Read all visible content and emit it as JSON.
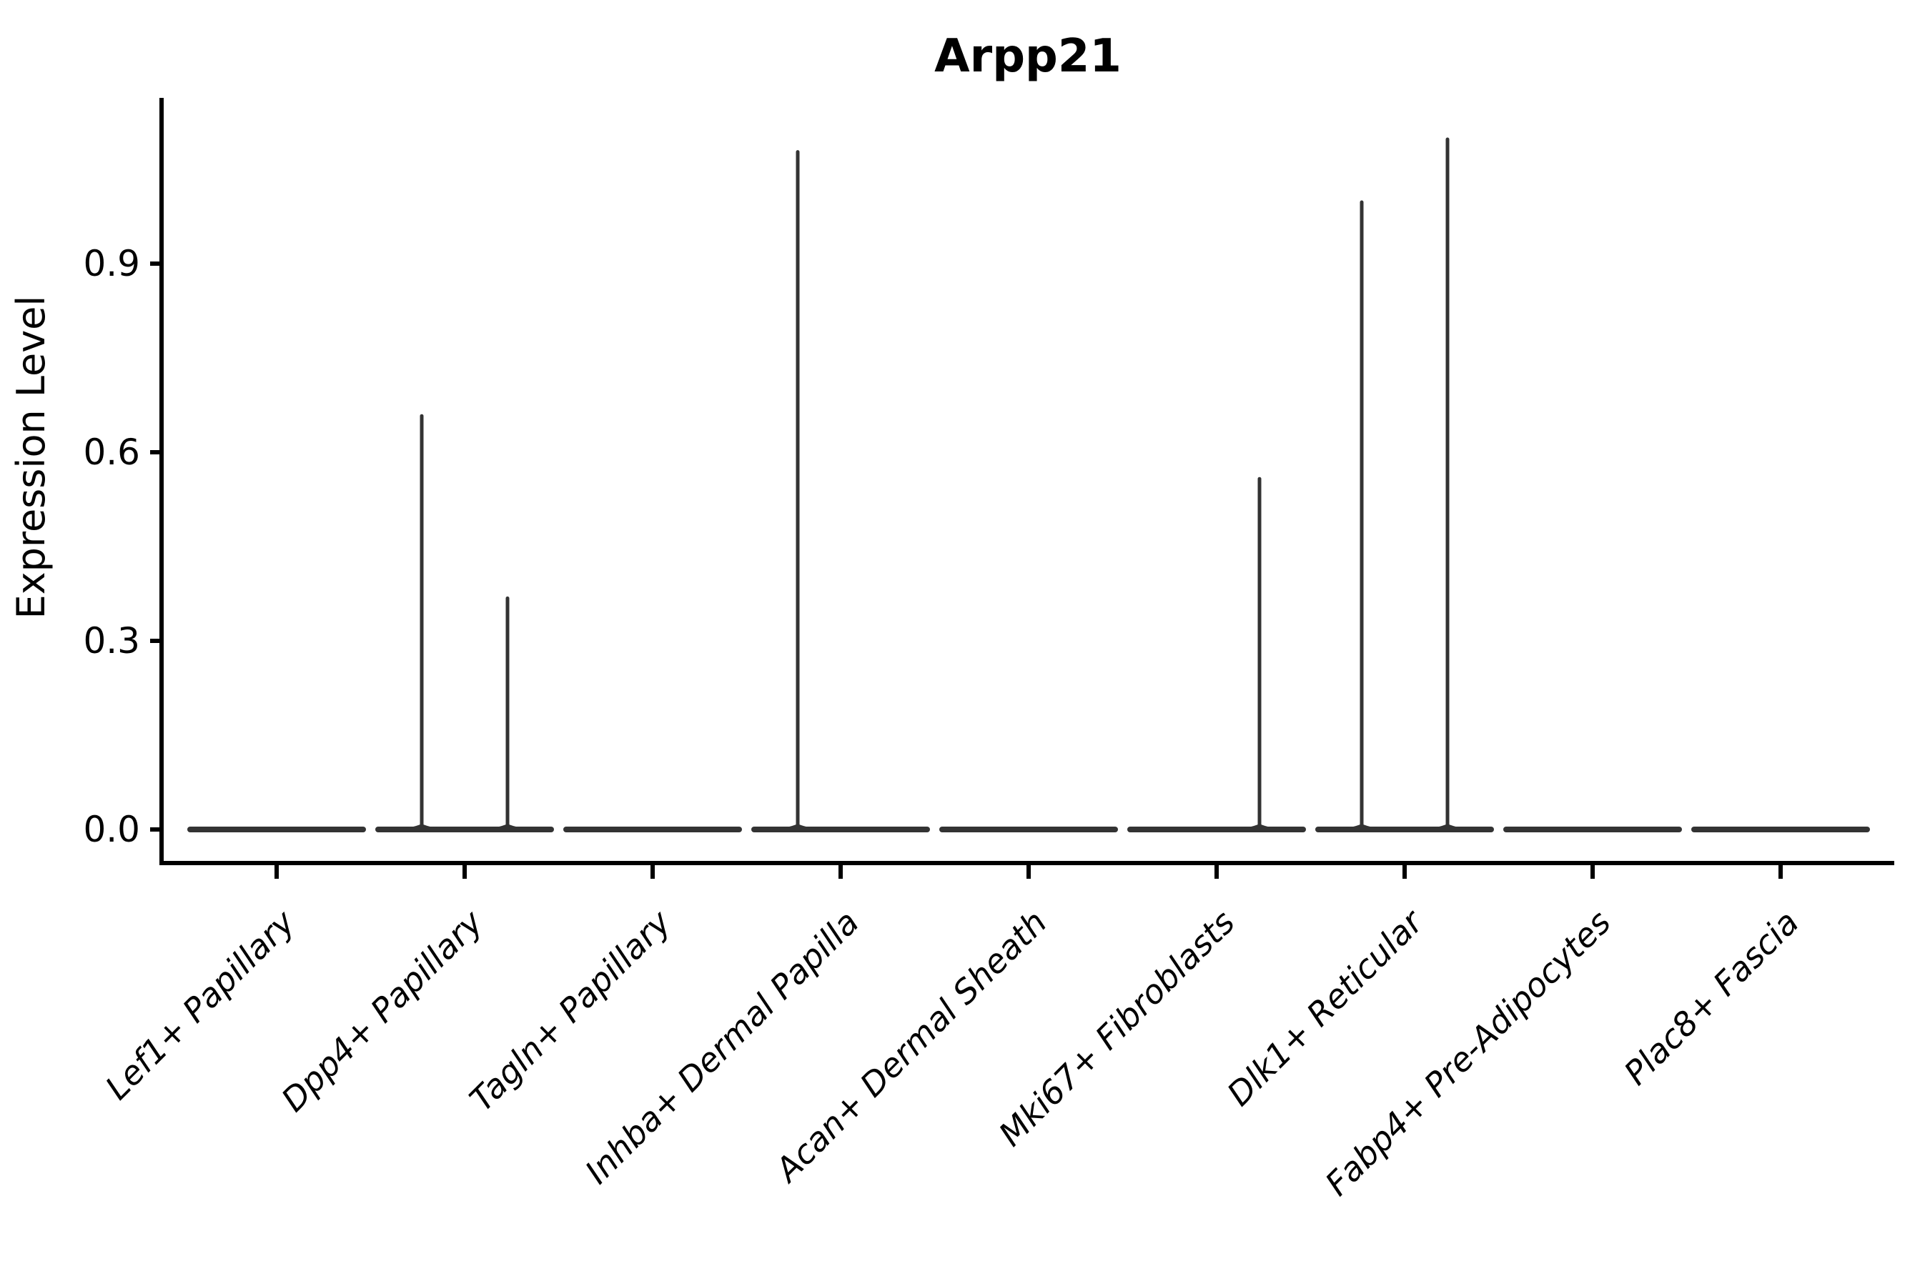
{
  "chart_data": {
    "type": "violin",
    "title": "Arpp21",
    "xlabel": "",
    "ylabel": "Expression Level",
    "yticks": [
      "0.0",
      "0.3",
      "0.6",
      "0.9"
    ],
    "ytick_values": [
      0.0,
      0.3,
      0.6,
      0.9
    ],
    "ylim": [
      -0.05,
      1.16
    ],
    "grid": false,
    "legend": "none",
    "colors": {
      "violin_stroke": "#333333",
      "axis": "#000000",
      "text": "#000000",
      "background": "#ffffff"
    },
    "categories": [
      "Lef1+ Papillary",
      "Dpp4+ Papillary",
      "Tagln+ Papillary",
      "Inhba+ Dermal Papilla",
      "Acan+ Dermal Sheath",
      "Mki67+ Fibroblasts",
      "Dlk1+ Reticular",
      "Fabp4+ Pre-Adipocytes",
      "Plac8+ Fascia"
    ],
    "violins": [
      {
        "category": "Lef1+ Papillary",
        "baseline_at_zero": true,
        "spikes": []
      },
      {
        "category": "Dpp4+ Papillary",
        "baseline_at_zero": true,
        "spikes": [
          {
            "position": "left",
            "max_expression": 0.66
          },
          {
            "position": "right",
            "max_expression": 0.37
          }
        ]
      },
      {
        "category": "Tagln+ Papillary",
        "baseline_at_zero": true,
        "spikes": []
      },
      {
        "category": "Inhba+ Dermal Papilla",
        "baseline_at_zero": true,
        "spikes": [
          {
            "position": "left",
            "max_expression": 1.08
          }
        ]
      },
      {
        "category": "Acan+ Dermal Sheath",
        "baseline_at_zero": true,
        "spikes": []
      },
      {
        "category": "Mki67+ Fibroblasts",
        "baseline_at_zero": true,
        "spikes": [
          {
            "position": "right",
            "max_expression": 0.56
          }
        ]
      },
      {
        "category": "Dlk1+ Reticular",
        "baseline_at_zero": true,
        "spikes": [
          {
            "position": "left",
            "max_expression": 1.0
          },
          {
            "position": "right",
            "max_expression": 1.1
          }
        ]
      },
      {
        "category": "Fabp4+ Pre-Adipocytes",
        "baseline_at_zero": true,
        "spikes": []
      },
      {
        "category": "Plac8+ Fascia",
        "baseline_at_zero": true,
        "spikes": []
      }
    ]
  }
}
